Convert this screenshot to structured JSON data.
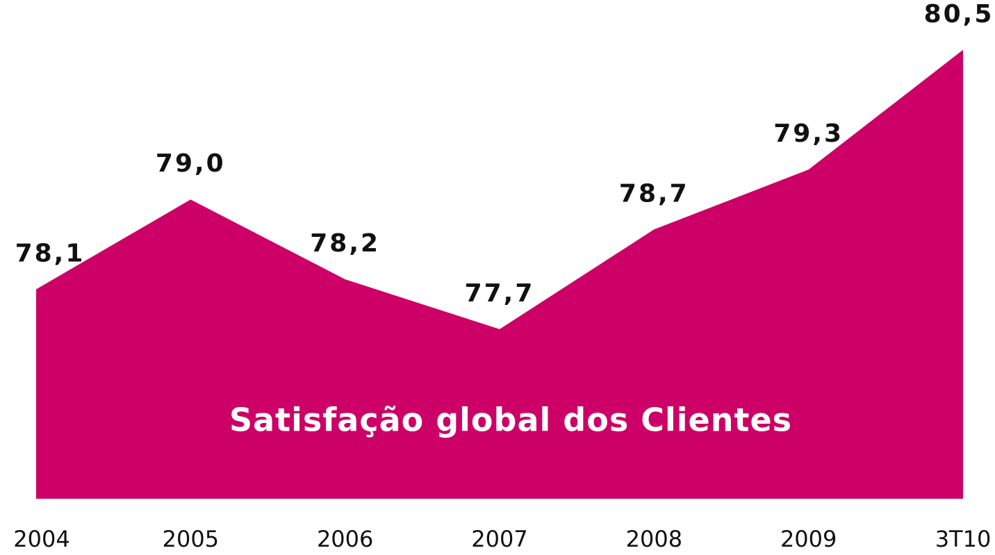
{
  "chart_data": {
    "type": "area",
    "title": "Satisfação global dos Clientes",
    "categories": [
      "2004",
      "2005",
      "2006",
      "2007",
      "2008",
      "2009",
      "3T10"
    ],
    "values": [
      78.1,
      79.0,
      78.2,
      77.7,
      78.7,
      79.3,
      80.5
    ],
    "value_labels": [
      "78,1",
      "79,0",
      "78,2",
      "77,7",
      "78,7",
      "79,3",
      "80,5"
    ],
    "color": "#cc0066",
    "ylim": [
      76,
      81
    ]
  }
}
